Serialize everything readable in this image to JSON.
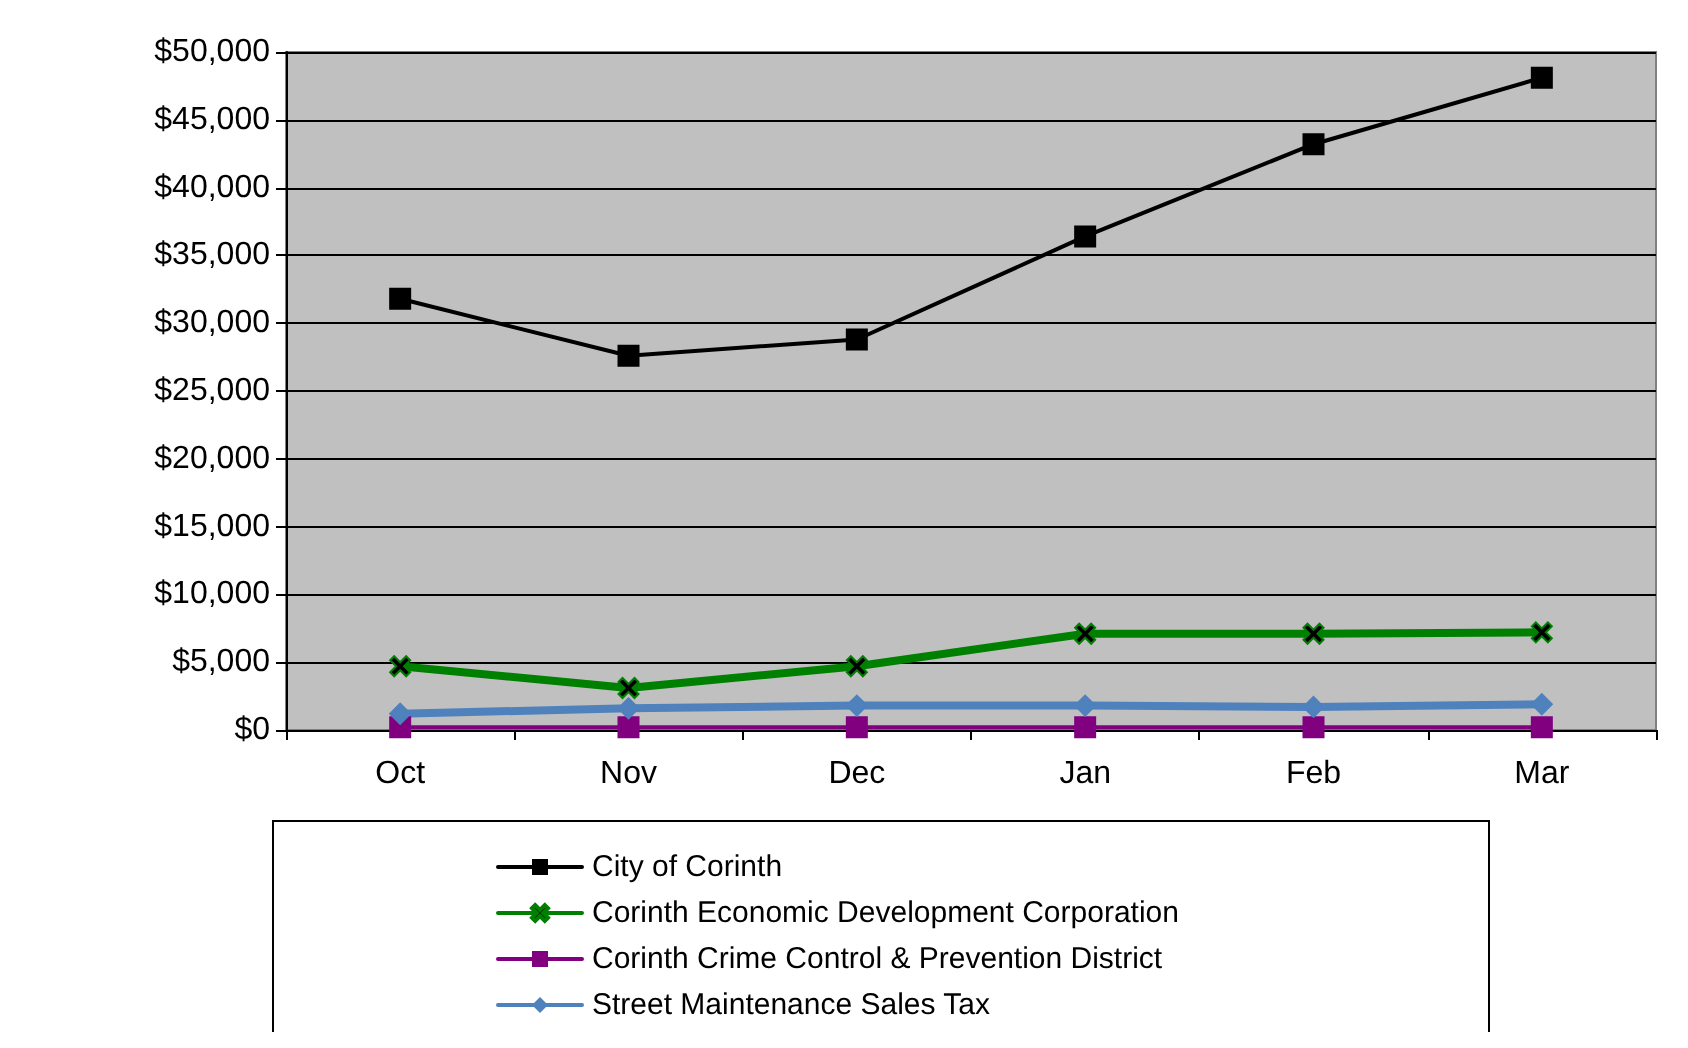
{
  "chart_data": {
    "type": "line",
    "categories": [
      "Oct",
      "Nov",
      "Dec",
      "Jan",
      "Feb",
      "Mar"
    ],
    "series": [
      {
        "name": "City of Corinth",
        "color": "#000000",
        "marker": "square",
        "values": [
          31800,
          27600,
          28800,
          36400,
          43200,
          48100
        ]
      },
      {
        "name": "Corinth Economic Development Corporation",
        "color": "#008000",
        "marker": "cross",
        "values": [
          4700,
          3100,
          4700,
          7100,
          7100,
          7200
        ]
      },
      {
        "name": "Corinth Crime Control & Prevention District",
        "color": "#800080",
        "marker": "square",
        "values": [
          200,
          200,
          200,
          200,
          200,
          200
        ]
      },
      {
        "name": "Street Maintenance Sales Tax",
        "color": "#4f81bd",
        "marker": "diamond",
        "values": [
          1200,
          1600,
          1800,
          1800,
          1700,
          1900
        ]
      }
    ],
    "ylim": [
      0,
      50000
    ],
    "yticks": [
      {
        "value": 0,
        "label": "$0"
      },
      {
        "value": 5000,
        "label": "$5,000"
      },
      {
        "value": 10000,
        "label": "$10,000"
      },
      {
        "value": 15000,
        "label": "$15,000"
      },
      {
        "value": 20000,
        "label": "$20,000"
      },
      {
        "value": 25000,
        "label": "$25,000"
      },
      {
        "value": 30000,
        "label": "$30,000"
      },
      {
        "value": 35000,
        "label": "$35,000"
      },
      {
        "value": 40000,
        "label": "$40,000"
      },
      {
        "value": 45000,
        "label": "$45,000"
      },
      {
        "value": 50000,
        "label": "$50,000"
      }
    ],
    "grid": "y",
    "legend": "bottom"
  }
}
